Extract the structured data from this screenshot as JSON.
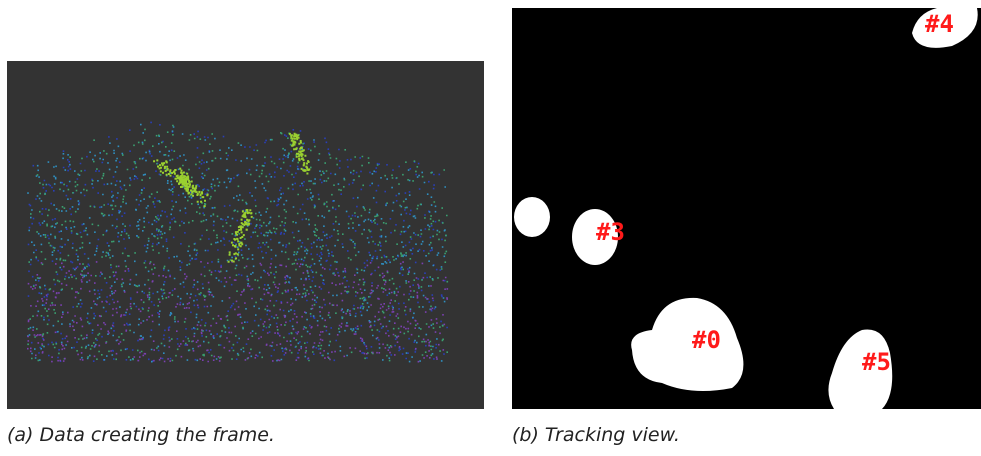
{
  "figures": [
    {
      "caption": "(a) Data creating the frame."
    },
    {
      "caption": "(b) Tracking view.",
      "labels": [
        "#3",
        "#0",
        "#5",
        "#4"
      ]
    }
  ]
}
